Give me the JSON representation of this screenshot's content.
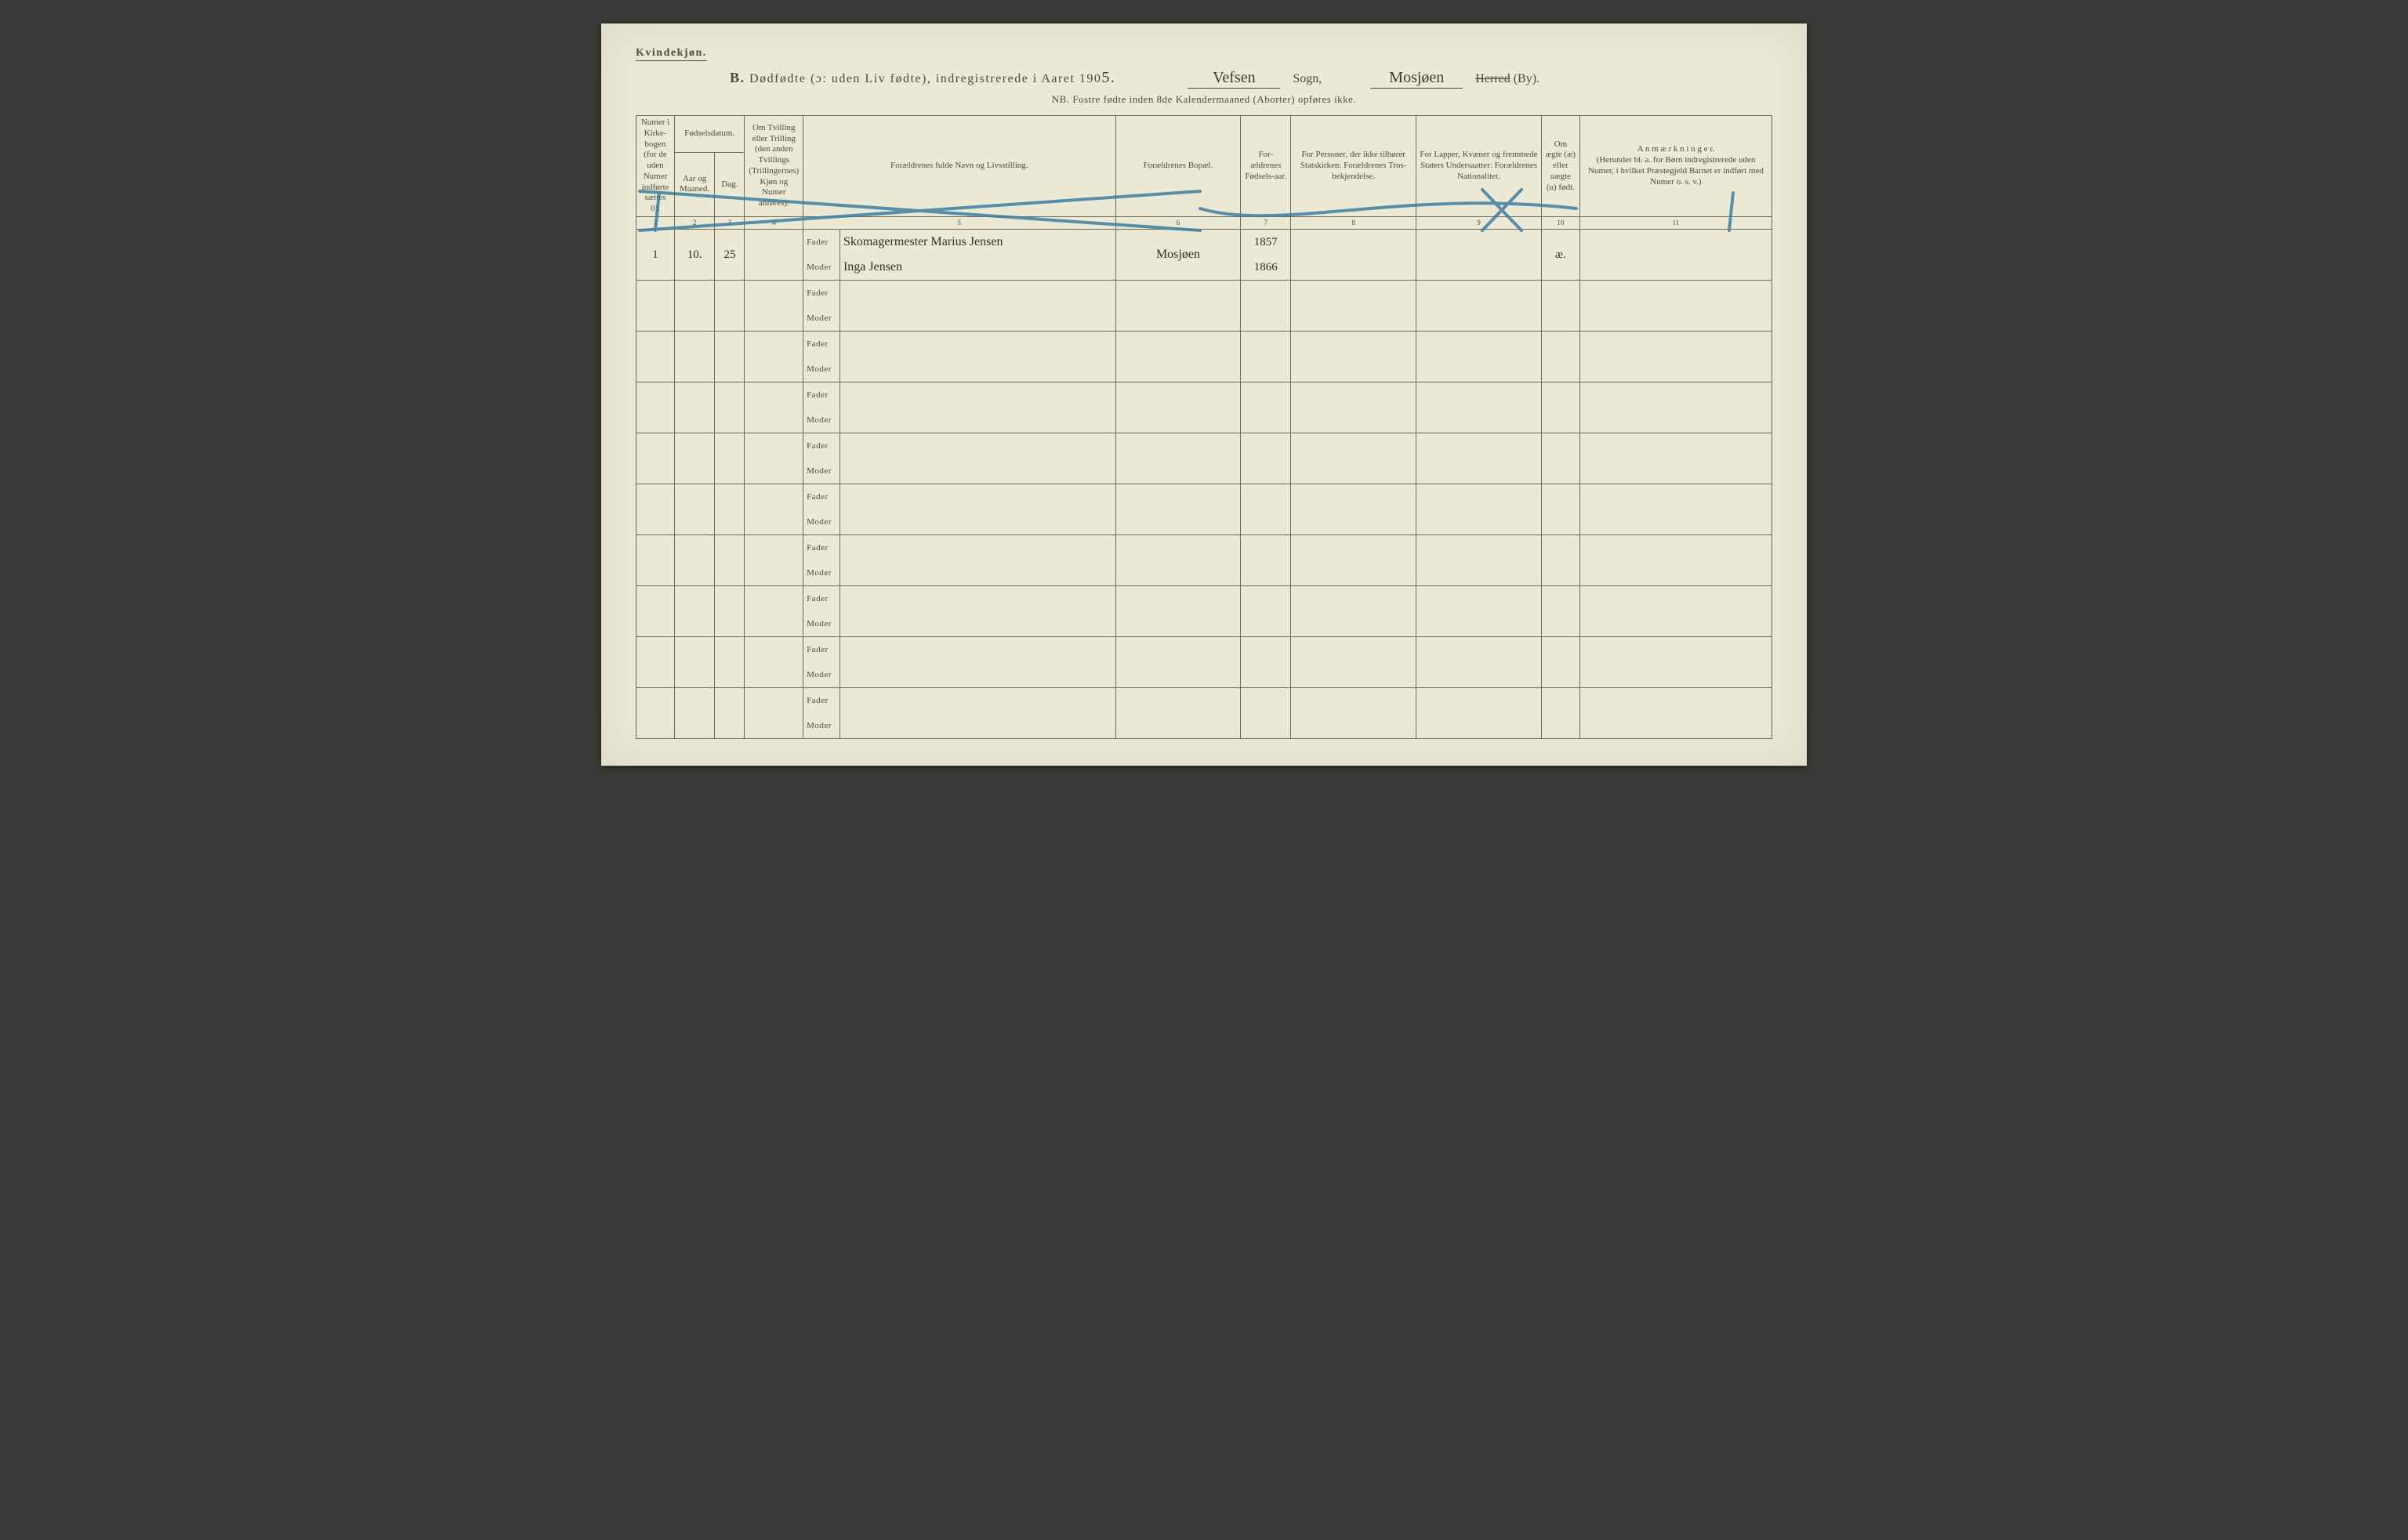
{
  "header": {
    "gender_label": "Kvindekjøn.",
    "section_letter": "B.",
    "title_main": "Dødfødte (ɔ: uden Liv fødte), indregistrerede i Aaret 190",
    "year_suffix_hw": "5.",
    "sogn_label": "Sogn,",
    "sogn_value_hw": "Vefsen",
    "by_label_struck": "Herred",
    "by_label": "(By).",
    "by_value_hw": "Mosjøen",
    "nb_line": "NB.  Fostre fødte inden 8de Kalendermaaned (Aborter) opføres ikke."
  },
  "columns": {
    "c1": "Numer i Kirke-bogen (for de uden Numer indførte sættes 0).",
    "c2_group": "Fødselsdatum.",
    "c2a": "Aar og Maaned.",
    "c2b": "Dag.",
    "c4": "Om Tvilling eller Trilling (den anden Tvillings (Trillingernes) Kjøn og Numer anføres).",
    "c5": "Forældrenes fulde Navn og Livsstilling.",
    "c6": "Forældrenes Bopæl.",
    "c7": "For-ældrenes Fødsels-aar.",
    "c8": "For Personer, der ikke tilhører Statskirken: Forældrenes Tros-bekjendelse.",
    "c9": "For Lapper, Kvæner og fremmede Staters Undersaatter: Forældrenes Nationalitet.",
    "c10": "Om ægte (æ) eller uægte (u) født.",
    "c11": "A n m æ r k n i n g e r.\n(Herunder bl. a. for Børn indregistrerede uden Numer, i hvilket Præstegjeld Barnet er indført med Numer o. s. v.)",
    "fader": "Fader",
    "moder": "Moder",
    "nums": [
      "1",
      "2",
      "3",
      "4",
      "5",
      "6",
      "7",
      "8",
      "9",
      "10",
      "11"
    ]
  },
  "entries": [
    {
      "num": "1",
      "month_hw": "10.",
      "day_hw": "25",
      "father_line": "Skomagermester Marius Jensen",
      "mother_line": "Inga Jensen",
      "residence": "Mosjøen",
      "father_birth": "1857",
      "mother_birth": "1866",
      "legit": "æ."
    },
    {},
    {},
    {},
    {},
    {},
    {},
    {},
    {},
    {}
  ],
  "style": {
    "paper_bg": "#ebe9d4",
    "ink": "#4a4a42",
    "rule": "#6b6b5d",
    "pencil_blue": "#3d7fa3"
  }
}
